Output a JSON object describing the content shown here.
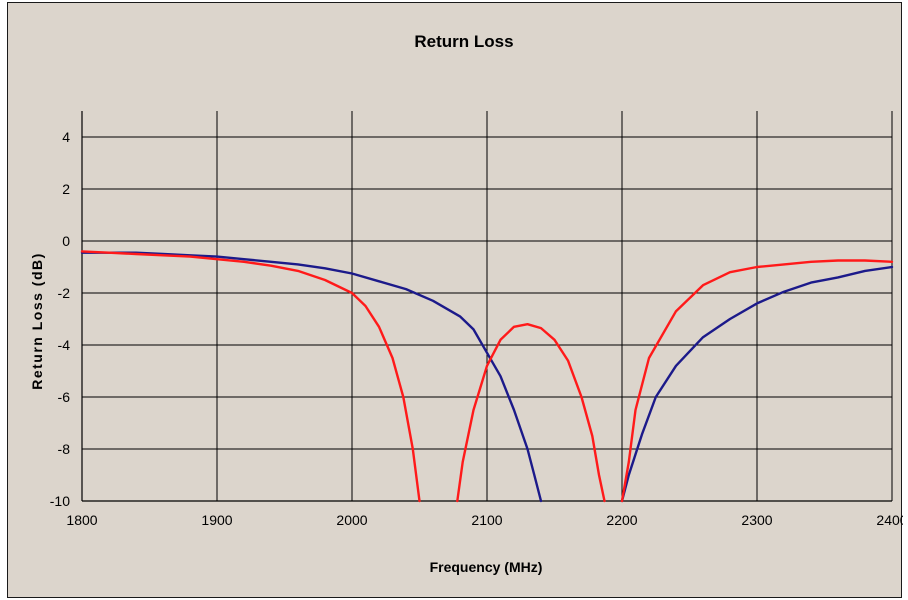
{
  "colors": {
    "background": "#dcd5cc",
    "grid": "#000000",
    "series_blue": "#1c1a8a",
    "series_red": "#ff1a1a"
  },
  "chart_data": {
    "type": "line",
    "title": "Return Loss",
    "xlabel": "Frequency (MHz)",
    "ylabel": "Return Loss (dB)",
    "xlim": [
      1800,
      2400
    ],
    "ylim": [
      -10,
      5
    ],
    "x_ticks": [
      1800,
      1900,
      2000,
      2100,
      2200,
      2300,
      2400
    ],
    "y_ticks": [
      4,
      2,
      0,
      -2,
      -4,
      -6,
      -8,
      -10
    ],
    "grid": true,
    "legend": "none",
    "series": [
      {
        "color": "#1c1a8a",
        "points": [
          [
            1800,
            -0.45
          ],
          [
            1820,
            -0.45
          ],
          [
            1840,
            -0.45
          ],
          [
            1860,
            -0.5
          ],
          [
            1880,
            -0.55
          ],
          [
            1900,
            -0.6
          ],
          [
            1920,
            -0.7
          ],
          [
            1940,
            -0.8
          ],
          [
            1960,
            -0.9
          ],
          [
            1980,
            -1.05
          ],
          [
            2000,
            -1.25
          ],
          [
            2020,
            -1.55
          ],
          [
            2040,
            -1.85
          ],
          [
            2060,
            -2.3
          ],
          [
            2080,
            -2.9
          ],
          [
            2090,
            -3.4
          ],
          [
            2100,
            -4.3
          ],
          [
            2110,
            -5.2
          ],
          [
            2120,
            -6.5
          ],
          [
            2130,
            -8.0
          ],
          [
            2135,
            -9.0
          ],
          [
            2140,
            -10.0
          ]
        ],
        "points_right": [
          [
            2200,
            -10.0
          ],
          [
            2205,
            -9.0
          ],
          [
            2215,
            -7.4
          ],
          [
            2225,
            -6.0
          ],
          [
            2240,
            -4.8
          ],
          [
            2260,
            -3.7
          ],
          [
            2280,
            -3.0
          ],
          [
            2300,
            -2.4
          ],
          [
            2320,
            -1.95
          ],
          [
            2340,
            -1.6
          ],
          [
            2360,
            -1.4
          ],
          [
            2380,
            -1.15
          ],
          [
            2400,
            -1.0
          ]
        ]
      },
      {
        "color": "#ff1a1a",
        "points": [
          [
            1800,
            -0.4
          ],
          [
            1820,
            -0.45
          ],
          [
            1840,
            -0.5
          ],
          [
            1860,
            -0.55
          ],
          [
            1880,
            -0.6
          ],
          [
            1900,
            -0.7
          ],
          [
            1920,
            -0.8
          ],
          [
            1940,
            -0.95
          ],
          [
            1960,
            -1.15
          ],
          [
            1980,
            -1.5
          ],
          [
            2000,
            -2.0
          ],
          [
            2010,
            -2.5
          ],
          [
            2020,
            -3.3
          ],
          [
            2030,
            -4.5
          ],
          [
            2038,
            -6.0
          ],
          [
            2045,
            -8.0
          ],
          [
            2050,
            -10.0
          ]
        ],
        "points_mid": [
          [
            2078,
            -10.0
          ],
          [
            2082,
            -8.5
          ],
          [
            2090,
            -6.5
          ],
          [
            2100,
            -4.8
          ],
          [
            2110,
            -3.8
          ],
          [
            2120,
            -3.3
          ],
          [
            2130,
            -3.2
          ],
          [
            2140,
            -3.35
          ],
          [
            2150,
            -3.8
          ],
          [
            2160,
            -4.6
          ],
          [
            2170,
            -6.0
          ],
          [
            2178,
            -7.5
          ],
          [
            2183,
            -9.0
          ],
          [
            2187,
            -10.0
          ]
        ],
        "points_right": [
          [
            2200,
            -10.0
          ],
          [
            2205,
            -8.5
          ],
          [
            2210,
            -6.5
          ],
          [
            2220,
            -4.5
          ],
          [
            2240,
            -2.7
          ],
          [
            2260,
            -1.7
          ],
          [
            2280,
            -1.2
          ],
          [
            2300,
            -1.0
          ],
          [
            2320,
            -0.9
          ],
          [
            2340,
            -0.8
          ],
          [
            2360,
            -0.75
          ],
          [
            2380,
            -0.75
          ],
          [
            2400,
            -0.8
          ]
        ]
      }
    ]
  }
}
